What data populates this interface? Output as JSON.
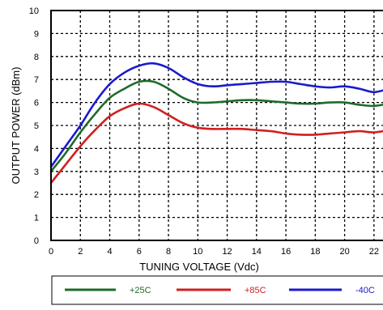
{
  "chart_data": {
    "type": "line",
    "title": "",
    "xlabel": "TUNING VOLTAGE (Vdc)",
    "ylabel": "OUTPUT POWER (dBm)",
    "xlim": [
      0,
      23
    ],
    "ylim": [
      0,
      10
    ],
    "x_ticks": [
      "0",
      "2",
      "4",
      "6",
      "8",
      "10",
      "12",
      "14",
      "16",
      "18",
      "20",
      "22"
    ],
    "y_ticks": [
      "0",
      "1",
      "2",
      "3",
      "4",
      "5",
      "6",
      "7",
      "8",
      "9",
      "10"
    ],
    "grid": true,
    "grid_style": "dashed",
    "legend_position": "bottom",
    "x": [
      0,
      1,
      2,
      3,
      4,
      5,
      6,
      7,
      8,
      9,
      10,
      11,
      12,
      13,
      14,
      15,
      16,
      17,
      18,
      19,
      20,
      21,
      22,
      23
    ],
    "series": [
      {
        "name": "+25C",
        "color": "#1e6b2a",
        "values": [
          3.0,
          3.8,
          4.7,
          5.5,
          6.2,
          6.6,
          6.9,
          6.9,
          6.6,
          6.2,
          6.0,
          6.0,
          6.05,
          6.1,
          6.1,
          6.05,
          6.0,
          5.95,
          5.95,
          6.0,
          6.0,
          5.9,
          5.85,
          5.95
        ]
      },
      {
        "name": "+85C",
        "color": "#d11f1f",
        "values": [
          2.5,
          3.3,
          4.1,
          4.8,
          5.4,
          5.75,
          5.95,
          5.8,
          5.45,
          5.1,
          4.9,
          4.85,
          4.85,
          4.85,
          4.8,
          4.75,
          4.65,
          4.6,
          4.6,
          4.65,
          4.7,
          4.75,
          4.7,
          4.8
        ]
      },
      {
        "name": "-40C",
        "color": "#1a1acf",
        "values": [
          3.2,
          4.1,
          5.0,
          6.0,
          6.8,
          7.3,
          7.6,
          7.7,
          7.5,
          7.1,
          6.8,
          6.7,
          6.75,
          6.8,
          6.85,
          6.9,
          6.9,
          6.8,
          6.7,
          6.65,
          6.7,
          6.6,
          6.45,
          6.6
        ]
      }
    ]
  }
}
